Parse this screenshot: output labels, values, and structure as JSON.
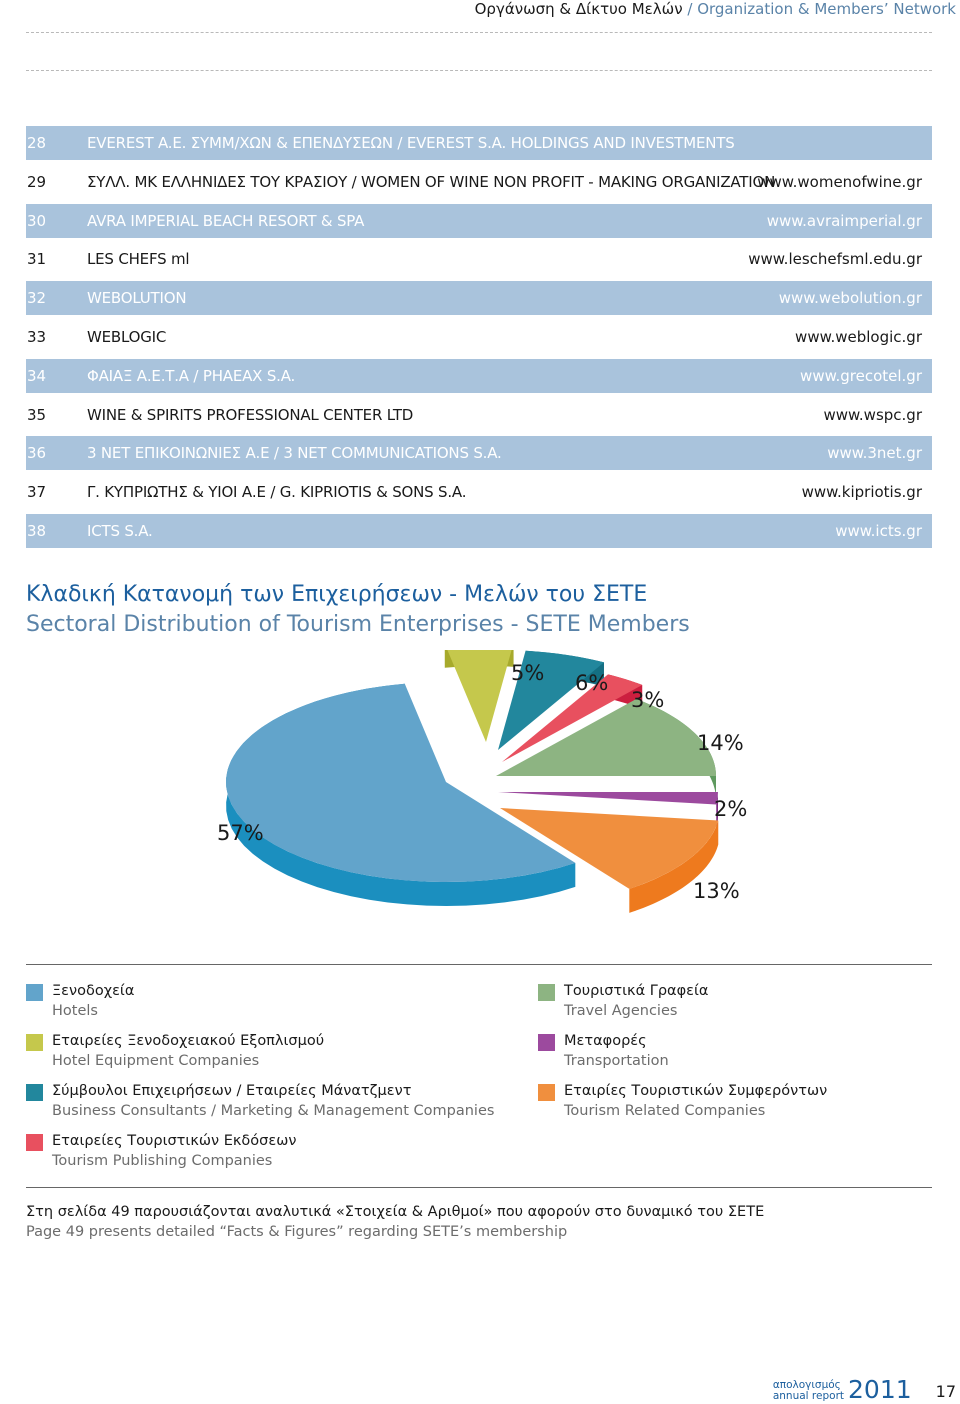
{
  "header": {
    "greek": "Οργάνωση & Δίκτυο Μελών",
    "separator": " / ",
    "english": "Organization & Members’ Network"
  },
  "members": [
    {
      "num": "28",
      "name": "EVEREST A.E. ΣΥΜΜ/ΧΩΝ & ΕΠΕΝΔΥΣΕΩΝ / EVEREST S.A. HOLDINGS AND INVESTMENTS",
      "url": ""
    },
    {
      "num": "29",
      "name": "ΣΥΛΛ. ΜΚ ΕΛΛΗΝΙΔΕΣ ΤΟΥ ΚΡΑΣΙΟΥ / WOMEN OF WINE NON PROFIT - MAKING ORGANIZATION",
      "url": "www.womenofwine.gr"
    },
    {
      "num": "30",
      "name": "AVRA IMPERIAL BEACH RESORT & SPA",
      "url": "www.avraimperial.gr"
    },
    {
      "num": "31",
      "name": "LES CHEFS ml",
      "url": "www.leschefsml.edu.gr"
    },
    {
      "num": "32",
      "name": "WEBOLUTION",
      "url": "www.webolution.gr"
    },
    {
      "num": "33",
      "name": "WEBLOGIC",
      "url": "www.weblogic.gr"
    },
    {
      "num": "34",
      "name": "ΦΑΙΑΞ Α.Ε.Τ.Α / PHAEAX S.A.",
      "url": "www.grecotel.gr"
    },
    {
      "num": "35",
      "name": "WINE & SPIRITS PROFESSIONAL CENTER LTD",
      "url": "www.wspc.gr"
    },
    {
      "num": "36",
      "name": "3 NET ΕΠΙΚΟΙΝΩΝΙΕΣ Α.Ε / 3 NET COMMUNICATIONS S.A.",
      "url": "www.3net.gr"
    },
    {
      "num": "37",
      "name": "Γ. ΚΥΠΡΙΩΤΗΣ & ΥΙΟΙ Α.Ε / G. KIPRIOTIS & SONS S.A.",
      "url": "www.kipriotis.gr"
    },
    {
      "num": "38",
      "name": "ICTS S.A.",
      "url": "www.icts.gr"
    }
  ],
  "section_title": {
    "greek": "Κλαδική Κατανομή των Επιχειρήσεων - Μελών του ΣΕΤΕ",
    "english": "Sectoral Distribution of Tourism Enterprises - SETE Members"
  },
  "chart_data": {
    "type": "pie",
    "title": "",
    "slices": [
      {
        "label_gr": "Ξενοδοχεία",
        "label_en": "Hotels",
        "value": 57,
        "label": "57%",
        "color": "#62a4cb",
        "side": "#1b8fbf"
      },
      {
        "label_gr": "Εταιρείες Ξενοδοχειακού Εξοπλισμού",
        "label_en": "Hotel Equipment Companies",
        "value": 5,
        "label": "5%",
        "color": "#c5c84c",
        "side": "#a7aa2c"
      },
      {
        "label_gr": "Σύμβουλοι Επιχειρήσεων / Εταιρείες Μάνατζμεντ",
        "label_en": "Business Consultants / Marketing & Management Companies",
        "value": 6,
        "label": "6%",
        "color": "#22879d",
        "side": "#146f83"
      },
      {
        "label_gr": "Εταιρείες Τουριστικών Εκδόσεων",
        "label_en": "Tourism Publishing Companies",
        "value": 3,
        "label": "3%",
        "color": "#e8505f",
        "side": "#cc1f3f"
      },
      {
        "label_gr": "Τουριστικά Γραφεία",
        "label_en": "Travel Agencies",
        "value": 14,
        "label": "14%",
        "color": "#8db482",
        "side": "#5f9a5f"
      },
      {
        "label_gr": "Μεταφορές",
        "label_en": "Transportation",
        "value": 2,
        "label": "2%",
        "color": "#9c4a9e",
        "side": "#7c2a80"
      },
      {
        "label_gr": "Εταιρίες Τουριστικών Συμφερόντων",
        "label_en": "Tourism Related Companies",
        "value": 13,
        "label": "13%",
        "color": "#f08f3e",
        "side": "#ee7a1e"
      }
    ]
  },
  "note": {
    "greek": "Στη σελίδα 49 παρουσιάζονται αναλυτικά «Στοιχεία & Αριθμοί» που αφορούν στο δυναμικό του ΣΕΤΕ",
    "english": "Page 49 presents detailed “Facts & Figures” regarding SETE’s membership"
  },
  "footer": {
    "line1": "απολογισμός",
    "line2": "annual report",
    "year": "2011",
    "page": "17"
  }
}
